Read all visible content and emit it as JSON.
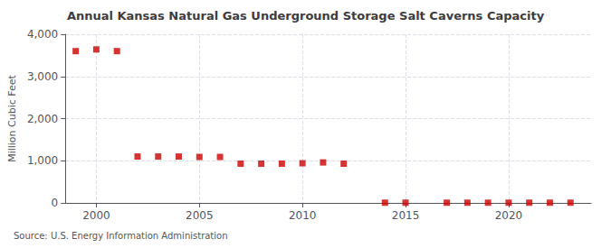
{
  "chart_data": {
    "type": "scatter",
    "title": "Annual Kansas Natural Gas Underground Storage Salt Caverns Capacity",
    "ylabel": "Million Cubic Feet",
    "annotation": "Source: U.S. Energy Information Administration",
    "x": [
      1999,
      2000,
      2001,
      2002,
      2003,
      2004,
      2005,
      2006,
      2007,
      2008,
      2009,
      2010,
      2011,
      2012,
      2014,
      2015,
      2017,
      2018,
      2019,
      2020,
      2021,
      2022,
      2023
    ],
    "values": [
      3600,
      3640,
      3600,
      1100,
      1100,
      1100,
      1090,
      1090,
      930,
      930,
      930,
      940,
      960,
      930,
      5,
      5,
      5,
      5,
      5,
      5,
      5,
      5,
      5
    ],
    "color": "#cc0000",
    "marker": "square",
    "xlim": [
      1998.5,
      2024
    ],
    "xticks": [
      2000,
      2005,
      2010,
      2015,
      2020
    ],
    "ylim": [
      0,
      4000
    ],
    "yticks": [
      0,
      {
        "value": 1000,
        "label": "1,000"
      },
      {
        "value": 2000,
        "label": "2,000"
      },
      {
        "value": 3000,
        "label": "3,000"
      },
      {
        "value": 4000,
        "label": "4,000"
      }
    ],
    "grid": true
  }
}
